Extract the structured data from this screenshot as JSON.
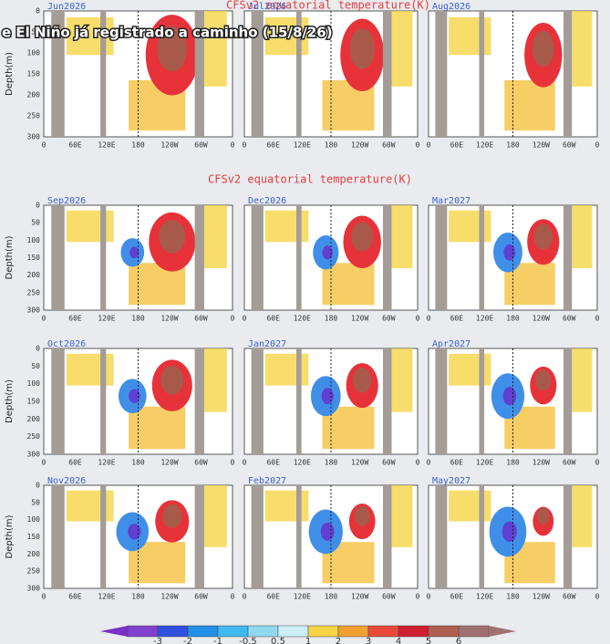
{
  "caption": "e El Niño já registrado a caminho (15/8/26)",
  "titles": [
    "CFSv2 equatorial temperature(K)",
    "CFSv2 equatorial temperature(K)"
  ],
  "panels": [
    "Jun2026",
    "Jul2026",
    "Aug2026",
    "Sep2026",
    "Dec2026",
    "Mar2027",
    "Oct2026",
    "Jan2027",
    "Apr2027",
    "Nov2026",
    "Feb2027",
    "May2027"
  ],
  "y_axis": {
    "label": "Depth(m)",
    "ticks": [
      "0",
      "50",
      "100",
      "150",
      "200",
      "250",
      "300"
    ]
  },
  "x_axis": {
    "ticks": [
      "0",
      "60E",
      "120E",
      "180",
      "120W",
      "60W",
      "0"
    ]
  },
  "colorbar": {
    "labels": [
      "-3",
      "-2",
      "-1",
      "-0.5",
      "0.5",
      "1",
      "2",
      "3",
      "4",
      "5",
      "6"
    ]
  }
}
